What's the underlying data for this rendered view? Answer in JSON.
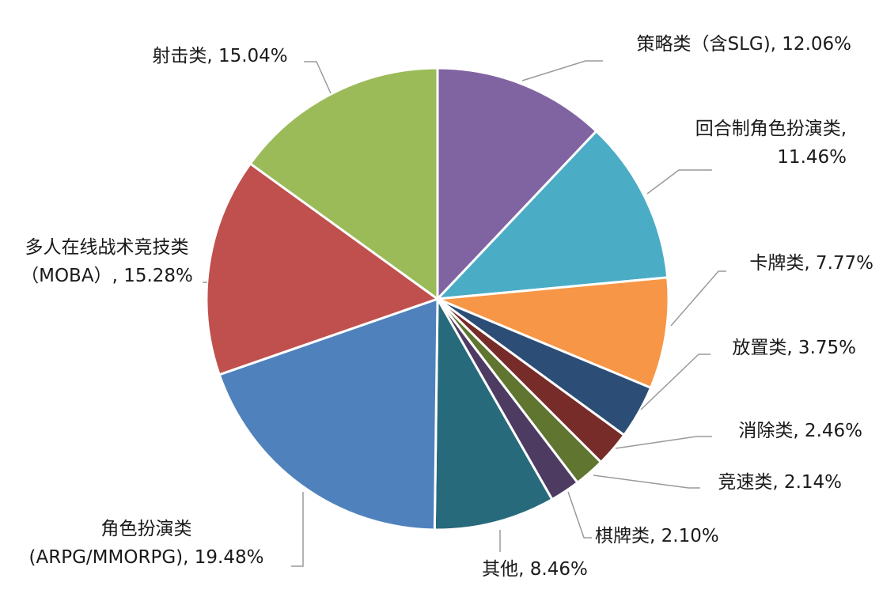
{
  "chart_data": {
    "type": "pie",
    "title": "",
    "start_angle_deg": 0,
    "direction": "clockwise",
    "slices": [
      {
        "label_lines": [
          "策略类（含SLG), 12.06%"
        ],
        "value": 12.06,
        "color": "#8064A2"
      },
      {
        "label_lines": [
          "回合制角色扮演类,",
          "11.46%"
        ],
        "value": 11.46,
        "color": "#4BACC6"
      },
      {
        "label_lines": [
          "卡牌类, 7.77%"
        ],
        "value": 7.77,
        "color": "#F79646"
      },
      {
        "label_lines": [
          "放置类, 3.75%"
        ],
        "value": 3.75,
        "color": "#2C4D75"
      },
      {
        "label_lines": [
          "消除类, 2.46%"
        ],
        "value": 2.46,
        "color": "#772C2A"
      },
      {
        "label_lines": [
          "竞速类, 2.14%"
        ],
        "value": 2.14,
        "color": "#5F7530"
      },
      {
        "label_lines": [
          "棋牌类, 2.10%"
        ],
        "value": 2.1,
        "color": "#4D3B62"
      },
      {
        "label_lines": [
          "其他, 8.46%"
        ],
        "value": 8.46,
        "color": "#276A7C"
      },
      {
        "label_lines": [
          "角色扮演类",
          "(ARPG/MMORPG), 19.48%"
        ],
        "value": 19.48,
        "color": "#4F81BD"
      },
      {
        "label_lines": [
          "多人在线战术竞技类",
          "（MOBA）, 15.28%"
        ],
        "value": 15.28,
        "color": "#C0504D"
      },
      {
        "label_lines": [
          "射击类, 15.04%"
        ],
        "value": 15.04,
        "color": "#9BBB59"
      }
    ]
  }
}
